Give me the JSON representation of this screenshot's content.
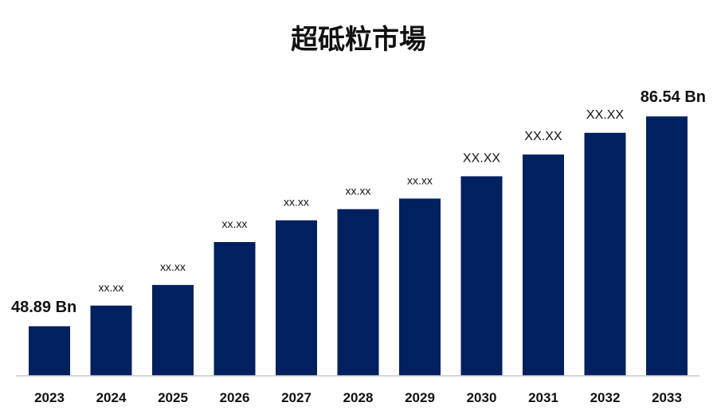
{
  "chart_data": {
    "type": "bar",
    "title": "超砥粒市場",
    "categories": [
      "2023",
      "2024",
      "2025",
      "2026",
      "2027",
      "2028",
      "2029",
      "2030",
      "2031",
      "2032",
      "2033"
    ],
    "values": [
      48.89,
      52.6,
      56.3,
      64.0,
      67.9,
      69.9,
      71.8,
      75.8,
      79.7,
      83.6,
      86.54
    ],
    "data_labels": [
      "48.89 Bn",
      "xx.xx",
      "xx.xx",
      "xx.xx",
      "xx.xx",
      "xx.xx",
      "xx.xx",
      "XX.XX",
      "XX.XX",
      "XX.XX",
      "86.54 Bn"
    ],
    "xlabel": "",
    "ylabel": "",
    "ylim": [
      40,
      90
    ],
    "grid": false,
    "bar_color": "#002060",
    "axis_color": "#c8c8c8"
  }
}
